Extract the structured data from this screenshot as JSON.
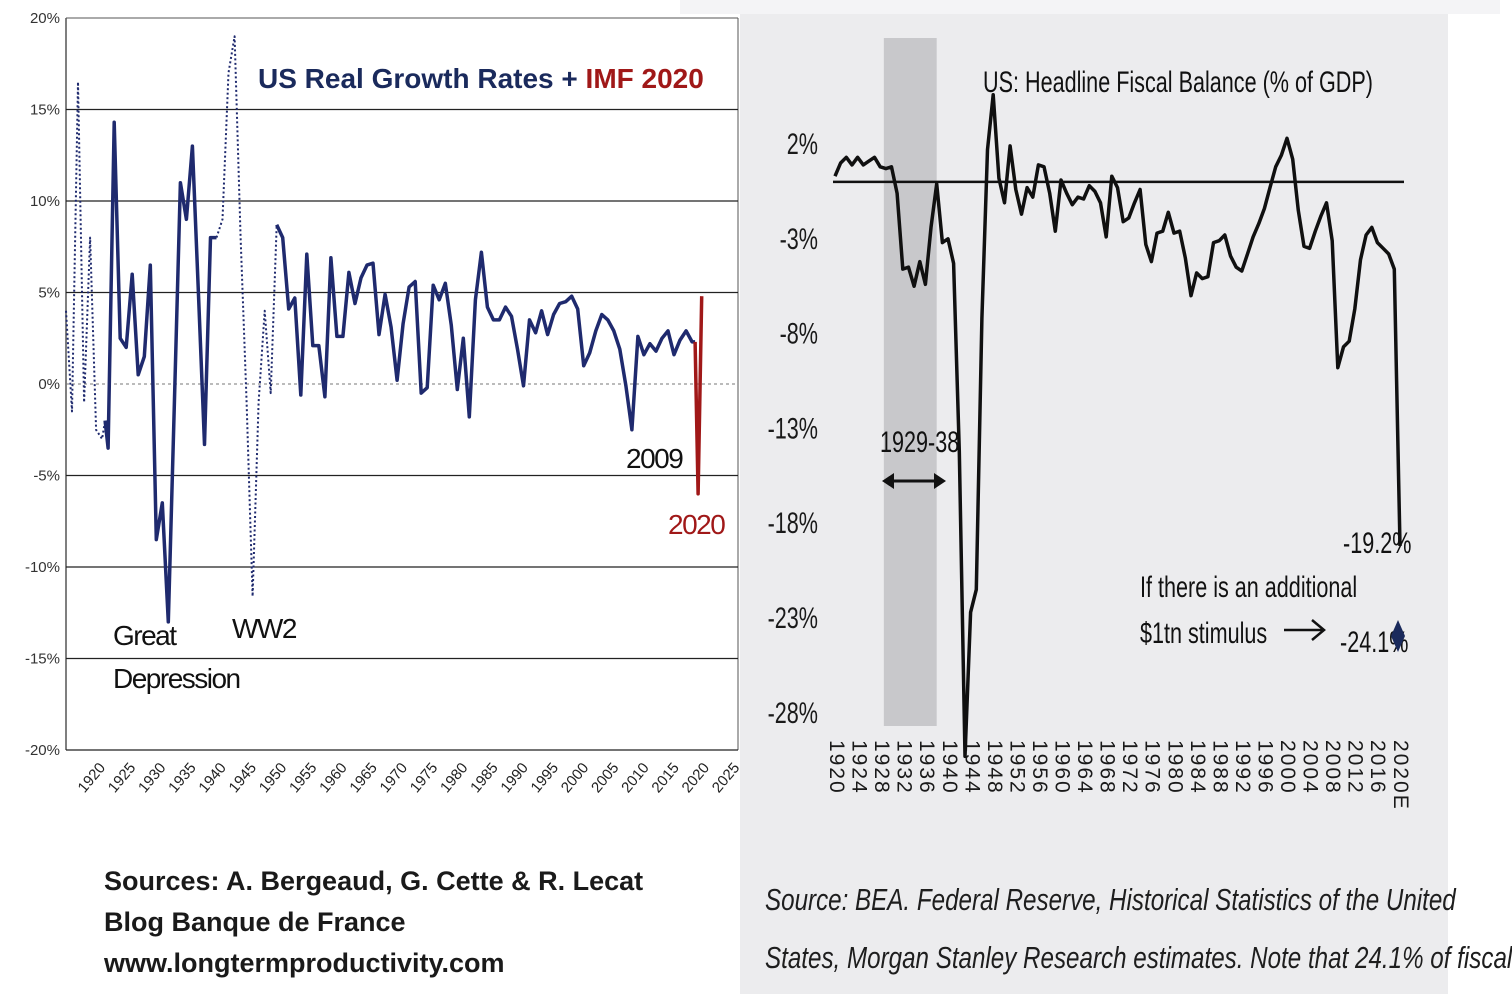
{
  "chart_data": [
    {
      "type": "line",
      "title": "US Real Growth Rates + ",
      "title_highlight": "IMF 2020",
      "colors": {
        "title": "#1a2a5c",
        "highlight": "#a01818",
        "line": "#1f2a6e",
        "line_2020": "#a01818"
      },
      "ylim": [
        -20,
        20
      ],
      "yticks": [
        -20,
        -15,
        -10,
        -5,
        0,
        5,
        10,
        15,
        20
      ],
      "ytick_labels": [
        "-20%",
        "-15%",
        "-10%",
        "-5%",
        "0%",
        "5%",
        "10%",
        "15%",
        "20%"
      ],
      "xlim": [
        1915,
        2025
      ],
      "xtick_labels": [
        "1920",
        "1925",
        "1930",
        "1935",
        "1940",
        "1945",
        "1950",
        "1955",
        "1960",
        "1965",
        "1970",
        "1975",
        "1980",
        "1985",
        "1990",
        "1995",
        "2000",
        "2005",
        "2010",
        "2015",
        "2020",
        "2025"
      ],
      "grid": true,
      "annotations": [
        "Great",
        "Depression",
        "WW2",
        "2009",
        "2020"
      ],
      "series": [
        {
          "style": "dotted",
          "x": [
            1915,
            1916,
            1917,
            1918,
            1919,
            1920,
            1921,
            1921.5
          ],
          "y": [
            4.0,
            -1.5,
            16.5,
            -1.0,
            8.0,
            -2.5,
            -3.0,
            -2.0
          ]
        },
        {
          "style": "solid",
          "x": [
            1921.5,
            1922,
            1923,
            1924,
            1925,
            1926,
            1927,
            1928,
            1929,
            1930,
            1931,
            1932,
            1933,
            1934,
            1935,
            1936,
            1937,
            1938,
            1939,
            1940
          ],
          "y": [
            -2.0,
            -3.5,
            14.3,
            2.5,
            2.0,
            6.0,
            0.5,
            1.5,
            6.5,
            -8.5,
            -6.5,
            -13.0,
            -1.0,
            11.0,
            9.0,
            13.0,
            5.0,
            -3.3,
            8.0,
            8.0
          ]
        },
        {
          "style": "dotted",
          "x": [
            1940,
            1941,
            1942,
            1943,
            1944,
            1945,
            1946,
            1947,
            1948,
            1949,
            1950
          ],
          "y": [
            8.0,
            9.0,
            17.0,
            19.0,
            8.0,
            -1.0,
            -11.6,
            -1.0,
            4.0,
            -0.5,
            8.7
          ]
        },
        {
          "style": "solid",
          "x": [
            1950,
            1951,
            1952,
            1953,
            1954,
            1955,
            1956,
            1957,
            1958,
            1959,
            1960,
            1961,
            1962,
            1963,
            1964,
            1965,
            1966,
            1967,
            1968,
            1969,
            1970,
            1971,
            1972,
            1973,
            1974,
            1975,
            1976,
            1977,
            1978,
            1979,
            1980,
            1981,
            1982,
            1983,
            1984,
            1985,
            1986,
            1987,
            1988,
            1989,
            1990,
            1991,
            1992,
            1993,
            1994,
            1995,
            1996,
            1997,
            1998,
            1999,
            2000,
            2001,
            2002,
            2003,
            2004,
            2005,
            2006,
            2007,
            2008,
            2009,
            2010,
            2011,
            2012,
            2013,
            2014,
            2015,
            2016,
            2017,
            2018,
            2019,
            2019.5
          ],
          "y": [
            8.7,
            8.0,
            4.1,
            4.7,
            -0.6,
            7.1,
            2.1,
            2.1,
            -0.7,
            6.9,
            2.6,
            2.6,
            6.1,
            4.4,
            5.8,
            6.5,
            6.6,
            2.7,
            4.9,
            3.1,
            0.2,
            3.3,
            5.3,
            5.6,
            -0.5,
            -0.2,
            5.4,
            4.6,
            5.5,
            3.2,
            -0.3,
            2.5,
            -1.8,
            4.6,
            7.2,
            4.2,
            3.5,
            3.5,
            4.2,
            3.7,
            1.9,
            -0.1,
            3.5,
            2.8,
            4.0,
            2.7,
            3.8,
            4.4,
            4.5,
            4.8,
            4.1,
            1.0,
            1.7,
            2.9,
            3.8,
            3.5,
            2.9,
            1.9,
            -0.1,
            -2.5,
            2.6,
            1.6,
            2.2,
            1.8,
            2.5,
            2.9,
            1.6,
            2.4,
            2.9,
            2.3,
            2.3
          ]
        },
        {
          "style": "solid-2020",
          "x": [
            2019.5,
            2020,
            2020.6
          ],
          "y": [
            2.3,
            -6.0,
            4.8
          ]
        }
      ]
    },
    {
      "type": "line",
      "title": "US: Headline Fiscal Balance (% of GDP)",
      "ylim": [
        -28,
        2
      ],
      "yticks": [
        2,
        -3,
        -8,
        -13,
        -18,
        -23,
        -28
      ],
      "ytick_labels": [
        "2%",
        "-3%",
        "-8%",
        "-13%",
        "-18%",
        "-23%",
        "-28%"
      ],
      "xtick_labels": [
        "1920",
        "1924",
        "1928",
        "1932",
        "1936",
        "1940",
        "1944",
        "1948",
        "1952",
        "1956",
        "1960",
        "1964",
        "1968",
        "1972",
        "1976",
        "1980",
        "1984",
        "1988",
        "1992",
        "1996",
        "2000",
        "2004",
        "2008",
        "2012",
        "2016",
        "2020E"
      ],
      "shaded_span": [
        1929,
        1938
      ],
      "span_label": "1929-38",
      "annotations": [
        "-19.2%",
        "If there is an additional",
        "$1tn stimulus",
        "-24.1%"
      ],
      "colors": {
        "line": "#101010",
        "shade": "#c4c4c6"
      },
      "x": [
        1920,
        1921,
        1922,
        1923,
        1924,
        1925,
        1926,
        1927,
        1928,
        1929,
        1930,
        1931,
        1932,
        1933,
        1934,
        1935,
        1936,
        1937,
        1938,
        1939,
        1940,
        1941,
        1942,
        1943,
        1944,
        1945,
        1946,
        1947,
        1948,
        1949,
        1950,
        1951,
        1952,
        1953,
        1954,
        1955,
        1956,
        1957,
        1958,
        1959,
        1960,
        1961,
        1962,
        1963,
        1964,
        1965,
        1966,
        1967,
        1968,
        1969,
        1970,
        1971,
        1972,
        1973,
        1974,
        1975,
        1976,
        1977,
        1978,
        1979,
        1980,
        1981,
        1982,
        1983,
        1984,
        1985,
        1986,
        1987,
        1988,
        1989,
        1990,
        1991,
        1992,
        1993,
        1994,
        1995,
        1996,
        1997,
        1998,
        1999,
        2000,
        2001,
        2002,
        2003,
        2004,
        2005,
        2006,
        2007,
        2008,
        2009,
        2010,
        2011,
        2012,
        2013,
        2014,
        2015,
        2016,
        2017,
        2018,
        2019,
        2020
      ],
      "y": [
        0.3,
        1.0,
        1.3,
        0.9,
        1.3,
        0.9,
        1.1,
        1.3,
        0.8,
        0.7,
        0.8,
        -0.6,
        -4.6,
        -4.5,
        -5.5,
        -4.2,
        -5.4,
        -2.4,
        -0.1,
        -3.2,
        -3.0,
        -4.3,
        -14.2,
        -30.3,
        -22.7,
        -21.5,
        -7.2,
        1.7,
        4.6,
        0.2,
        -1.1,
        1.9,
        -0.4,
        -1.7,
        -0.3,
        -0.8,
        0.9,
        0.8,
        -0.6,
        -2.6,
        0.1,
        -0.6,
        -1.2,
        -0.8,
        -0.9,
        -0.2,
        -0.5,
        -1.1,
        -2.9,
        0.3,
        -0.3,
        -2.1,
        -1.9,
        -1.1,
        -0.4,
        -3.3,
        -4.2,
        -2.7,
        -2.6,
        -1.6,
        -2.7,
        -2.6,
        -4.0,
        -6.0,
        -4.8,
        -5.1,
        -5.0,
        -3.2,
        -3.1,
        -2.8,
        -3.9,
        -4.5,
        -4.7,
        -3.8,
        -2.9,
        -2.2,
        -1.4,
        -0.3,
        0.8,
        1.4,
        2.3,
        1.2,
        -1.5,
        -3.4,
        -3.5,
        -2.6,
        -1.8,
        -1.1,
        -3.1,
        -9.8,
        -8.7,
        -8.4,
        -6.7,
        -4.1,
        -2.8,
        -2.4,
        -3.2,
        -3.5,
        -3.8,
        -4.6,
        -19.2
      ],
      "extra_point": {
        "x": 2020,
        "y": -24.1
      }
    }
  ],
  "sources_left": [
    "Sources: A. Bergeaud, G. Cette & R. Lecat",
    "Blog Banque de France",
    "www.longtermproductivity.com"
  ],
  "sources_right": [
    "Source: BEA. Federal Reserve, Historical Statistics of the United",
    "States, Morgan Stanley Research estimates. Note that 24.1% of fiscal"
  ]
}
